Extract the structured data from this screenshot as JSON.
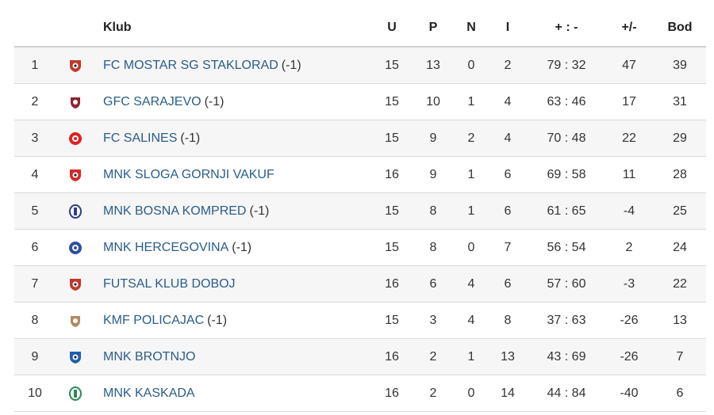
{
  "headers": {
    "club": "Klub",
    "u": "U",
    "p": "P",
    "n": "N",
    "i": "I",
    "score": "+ : -",
    "diff": "+/-",
    "pts": "Bod"
  },
  "rows": [
    {
      "rank": "1",
      "club": "FC MOSTAR SG STAKLORAD",
      "penalty": "(-1)",
      "u": "15",
      "p": "13",
      "n": "0",
      "i": "2",
      "score": "79 : 32",
      "diff": "47",
      "pts": "39",
      "logo": "shield-logo",
      "color": "#c0392b"
    },
    {
      "rank": "2",
      "club": "GFC SARAJEVO",
      "penalty": "(-1)",
      "u": "15",
      "p": "10",
      "n": "1",
      "i": "4",
      "score": "63 : 46",
      "diff": "17",
      "pts": "31",
      "logo": "crest-logo",
      "color": "#8e2430"
    },
    {
      "rank": "3",
      "club": "FC SALINES",
      "penalty": "(-1)",
      "u": "15",
      "p": "9",
      "n": "2",
      "i": "4",
      "score": "70 : 48",
      "diff": "22",
      "pts": "29",
      "logo": "round-logo",
      "color": "#e02020"
    },
    {
      "rank": "4",
      "club": "MNK SLOGA GORNJI VAKUF",
      "penalty": "",
      "u": "16",
      "p": "9",
      "n": "1",
      "i": "6",
      "score": "69 : 58",
      "diff": "11",
      "pts": "28",
      "logo": "shield-logo",
      "color": "#d62828"
    },
    {
      "rank": "5",
      "club": "MNK BOSNA KOMPRED",
      "penalty": "(-1)",
      "u": "15",
      "p": "8",
      "n": "1",
      "i": "6",
      "score": "61 : 65",
      "diff": "-4",
      "pts": "25",
      "logo": "oval-logo",
      "color": "#2c3e8c"
    },
    {
      "rank": "6",
      "club": "MNK HERCEGOVINA",
      "penalty": "(-1)",
      "u": "15",
      "p": "8",
      "n": "0",
      "i": "7",
      "score": "56 : 54",
      "diff": "2",
      "pts": "24",
      "logo": "round-logo",
      "color": "#2f4fa0"
    },
    {
      "rank": "7",
      "club": "FUTSAL KLUB DOBOJ",
      "penalty": "",
      "u": "16",
      "p": "6",
      "n": "4",
      "i": "6",
      "score": "57 : 60",
      "diff": "-3",
      "pts": "22",
      "logo": "shield-logo",
      "color": "#c0392b"
    },
    {
      "rank": "8",
      "club": "KMF POLICAJAC",
      "penalty": "(-1)",
      "u": "15",
      "p": "3",
      "n": "4",
      "i": "8",
      "score": "37 : 63",
      "diff": "-26",
      "pts": "13",
      "logo": "crest-logo",
      "color": "#b08a60"
    },
    {
      "rank": "9",
      "club": "MNK BROTNJO",
      "penalty": "",
      "u": "16",
      "p": "2",
      "n": "1",
      "i": "13",
      "score": "43 : 69",
      "diff": "-26",
      "pts": "7",
      "logo": "shield-logo",
      "color": "#1f5fb0"
    },
    {
      "rank": "10",
      "club": "MNK KASKADA",
      "penalty": "",
      "u": "16",
      "p": "2",
      "n": "0",
      "i": "14",
      "score": "44 : 84",
      "diff": "-40",
      "pts": "6",
      "logo": "oval-logo",
      "color": "#2e8b57"
    }
  ]
}
